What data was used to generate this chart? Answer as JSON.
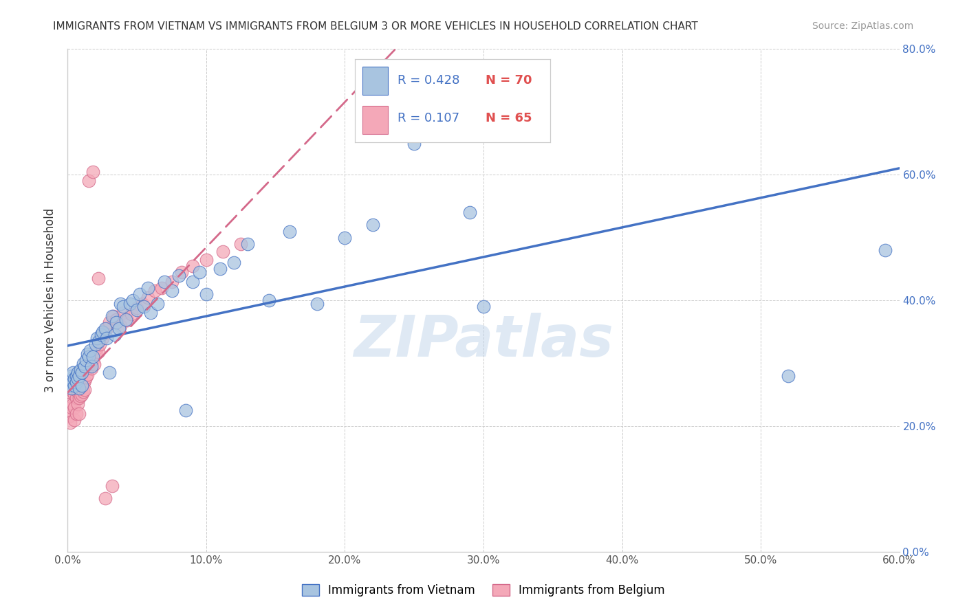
{
  "title": "IMMIGRANTS FROM VIETNAM VS IMMIGRANTS FROM BELGIUM 3 OR MORE VEHICLES IN HOUSEHOLD CORRELATION CHART",
  "source": "Source: ZipAtlas.com",
  "ylabel": "3 or more Vehicles in Household",
  "legend_vietnam": "Immigrants from Vietnam",
  "legend_belgium": "Immigrants from Belgium",
  "R_vietnam": 0.428,
  "N_vietnam": 70,
  "R_belgium": 0.107,
  "N_belgium": 65,
  "xlim": [
    0.0,
    0.6
  ],
  "ylim": [
    0.0,
    0.8
  ],
  "xticks": [
    0.0,
    0.1,
    0.2,
    0.3,
    0.4,
    0.5,
    0.6
  ],
  "yticks": [
    0.0,
    0.2,
    0.4,
    0.6,
    0.8
  ],
  "color_vietnam": "#a8c4e0",
  "color_belgium": "#f4a8b8",
  "line_color_vietnam": "#4472c4",
  "line_color_belgium": "#d4698a",
  "watermark": "ZIPatlas",
  "title_fontsize": 11,
  "source_fontsize": 10,
  "tick_fontsize": 11,
  "ylabel_fontsize": 12,
  "vietnam_x": [
    0.001,
    0.002,
    0.002,
    0.003,
    0.003,
    0.004,
    0.004,
    0.005,
    0.005,
    0.006,
    0.006,
    0.007,
    0.007,
    0.008,
    0.008,
    0.009,
    0.01,
    0.01,
    0.011,
    0.012,
    0.013,
    0.014,
    0.015,
    0.016,
    0.017,
    0.018,
    0.02,
    0.021,
    0.022,
    0.024,
    0.025,
    0.027,
    0.028,
    0.03,
    0.032,
    0.034,
    0.035,
    0.037,
    0.038,
    0.04,
    0.042,
    0.045,
    0.047,
    0.05,
    0.052,
    0.055,
    0.058,
    0.06,
    0.065,
    0.07,
    0.075,
    0.08,
    0.085,
    0.09,
    0.095,
    0.1,
    0.11,
    0.12,
    0.13,
    0.145,
    0.16,
    0.18,
    0.2,
    0.22,
    0.25,
    0.27,
    0.29,
    0.3,
    0.52,
    0.59
  ],
  "vietnam_y": [
    0.27,
    0.265,
    0.275,
    0.28,
    0.26,
    0.27,
    0.285,
    0.265,
    0.275,
    0.28,
    0.27,
    0.285,
    0.275,
    0.26,
    0.28,
    0.29,
    0.265,
    0.285,
    0.3,
    0.295,
    0.305,
    0.315,
    0.31,
    0.32,
    0.295,
    0.31,
    0.33,
    0.34,
    0.335,
    0.345,
    0.35,
    0.355,
    0.34,
    0.285,
    0.375,
    0.345,
    0.365,
    0.355,
    0.395,
    0.39,
    0.37,
    0.395,
    0.4,
    0.385,
    0.41,
    0.39,
    0.42,
    0.38,
    0.395,
    0.43,
    0.415,
    0.44,
    0.225,
    0.43,
    0.445,
    0.41,
    0.45,
    0.46,
    0.49,
    0.4,
    0.51,
    0.395,
    0.5,
    0.52,
    0.65,
    0.69,
    0.54,
    0.39,
    0.28,
    0.48
  ],
  "belgium_x": [
    0.001,
    0.001,
    0.002,
    0.002,
    0.002,
    0.003,
    0.003,
    0.004,
    0.004,
    0.005,
    0.005,
    0.005,
    0.006,
    0.006,
    0.006,
    0.007,
    0.007,
    0.008,
    0.008,
    0.008,
    0.009,
    0.009,
    0.01,
    0.01,
    0.011,
    0.011,
    0.012,
    0.012,
    0.013,
    0.014,
    0.015,
    0.016,
    0.017,
    0.018,
    0.019,
    0.02,
    0.021,
    0.022,
    0.023,
    0.025,
    0.026,
    0.028,
    0.03,
    0.033,
    0.035,
    0.038,
    0.04,
    0.043,
    0.046,
    0.05,
    0.054,
    0.058,
    0.063,
    0.068,
    0.075,
    0.082,
    0.09,
    0.1,
    0.112,
    0.125,
    0.015,
    0.018,
    0.022,
    0.027,
    0.032
  ],
  "belgium_y": [
    0.255,
    0.215,
    0.235,
    0.225,
    0.205,
    0.26,
    0.23,
    0.255,
    0.235,
    0.25,
    0.23,
    0.21,
    0.265,
    0.245,
    0.22,
    0.255,
    0.235,
    0.26,
    0.245,
    0.22,
    0.265,
    0.248,
    0.27,
    0.25,
    0.268,
    0.255,
    0.272,
    0.258,
    0.278,
    0.282,
    0.295,
    0.3,
    0.292,
    0.305,
    0.298,
    0.315,
    0.325,
    0.318,
    0.33,
    0.34,
    0.348,
    0.355,
    0.365,
    0.375,
    0.37,
    0.36,
    0.38,
    0.368,
    0.378,
    0.388,
    0.395,
    0.405,
    0.415,
    0.42,
    0.43,
    0.445,
    0.455,
    0.465,
    0.478,
    0.49,
    0.59,
    0.605,
    0.435,
    0.085,
    0.105
  ]
}
